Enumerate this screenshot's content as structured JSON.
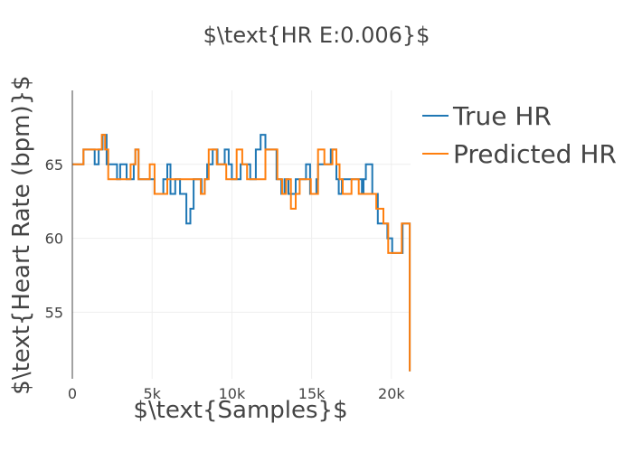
{
  "chart_data": {
    "type": "line",
    "title": "$\\text{HR E:0.006}$",
    "xlabel": "$\\text{Samples}$",
    "ylabel": "$\\text{Heart Rate (bpm)}$",
    "xlim": [
      0,
      21200
    ],
    "ylim": [
      50.5,
      70
    ],
    "x_ticks": [
      0,
      5000,
      10000,
      15000,
      20000
    ],
    "x_tick_labels": [
      "0",
      "5k",
      "10k",
      "15k",
      "20k"
    ],
    "y_ticks": [
      55,
      60,
      65
    ],
    "y_tick_labels": [
      "55",
      "60",
      "65"
    ],
    "grid": true,
    "legend_position": "top-right",
    "step": true,
    "series": [
      {
        "name": "True HR",
        "color": "#1f77b4",
        "points": [
          [
            0,
            65
          ],
          [
            700,
            66
          ],
          [
            1400,
            65
          ],
          [
            1650,
            66
          ],
          [
            1900,
            67
          ],
          [
            2150,
            65
          ],
          [
            2700,
            65
          ],
          [
            2800,
            64
          ],
          [
            3000,
            65
          ],
          [
            3400,
            64
          ],
          [
            3850,
            65
          ],
          [
            3950,
            66
          ],
          [
            4150,
            64
          ],
          [
            5150,
            63
          ],
          [
            5700,
            64
          ],
          [
            5950,
            65
          ],
          [
            6150,
            63
          ],
          [
            6450,
            64
          ],
          [
            6750,
            63
          ],
          [
            7150,
            61
          ],
          [
            7400,
            62
          ],
          [
            7600,
            64
          ],
          [
            8100,
            63
          ],
          [
            8300,
            64
          ],
          [
            8450,
            65
          ],
          [
            8800,
            66
          ],
          [
            9100,
            65
          ],
          [
            9550,
            66
          ],
          [
            9800,
            65
          ],
          [
            10000,
            64
          ],
          [
            10550,
            65
          ],
          [
            11150,
            64
          ],
          [
            11500,
            66
          ],
          [
            11800,
            67
          ],
          [
            12100,
            66
          ],
          [
            12800,
            64
          ],
          [
            13100,
            63
          ],
          [
            13300,
            64
          ],
          [
            13550,
            63
          ],
          [
            14000,
            64
          ],
          [
            14200,
            64
          ],
          [
            14650,
            65
          ],
          [
            14900,
            63
          ],
          [
            15300,
            64
          ],
          [
            15400,
            65
          ],
          [
            15800,
            65
          ],
          [
            16200,
            66
          ],
          [
            16550,
            64
          ],
          [
            16700,
            63
          ],
          [
            16900,
            64
          ],
          [
            17550,
            64
          ],
          [
            18150,
            63
          ],
          [
            18250,
            64
          ],
          [
            18400,
            65
          ],
          [
            18800,
            63
          ],
          [
            19150,
            61
          ],
          [
            19500,
            61
          ],
          [
            19750,
            60
          ],
          [
            20050,
            59
          ],
          [
            20700,
            61
          ],
          [
            21100,
            61
          ],
          [
            21150,
            51
          ]
        ]
      },
      {
        "name": "Predicted HR",
        "color": "#ff7f0e",
        "points": [
          [
            0,
            65
          ],
          [
            700,
            66
          ],
          [
            1850,
            67
          ],
          [
            2050,
            66
          ],
          [
            2250,
            64
          ],
          [
            3650,
            65
          ],
          [
            3950,
            66
          ],
          [
            4150,
            64
          ],
          [
            4850,
            65
          ],
          [
            5150,
            63
          ],
          [
            5950,
            64
          ],
          [
            7450,
            64
          ],
          [
            8050,
            63
          ],
          [
            8300,
            64
          ],
          [
            8550,
            66
          ],
          [
            9050,
            65
          ],
          [
            9650,
            64
          ],
          [
            10300,
            66
          ],
          [
            10650,
            65
          ],
          [
            10950,
            64
          ],
          [
            11450,
            64
          ],
          [
            12100,
            66
          ],
          [
            12850,
            64
          ],
          [
            13150,
            63
          ],
          [
            13400,
            64
          ],
          [
            13700,
            62
          ],
          [
            14000,
            63
          ],
          [
            14250,
            64
          ],
          [
            14950,
            63
          ],
          [
            15400,
            66
          ],
          [
            15800,
            65
          ],
          [
            16300,
            66
          ],
          [
            16550,
            65
          ],
          [
            16750,
            64
          ],
          [
            16950,
            63
          ],
          [
            17500,
            64
          ],
          [
            17950,
            63
          ],
          [
            18650,
            63
          ],
          [
            19050,
            62
          ],
          [
            19500,
            61
          ],
          [
            19800,
            59
          ],
          [
            20650,
            61
          ],
          [
            21100,
            61
          ],
          [
            21150,
            51
          ]
        ]
      }
    ]
  }
}
